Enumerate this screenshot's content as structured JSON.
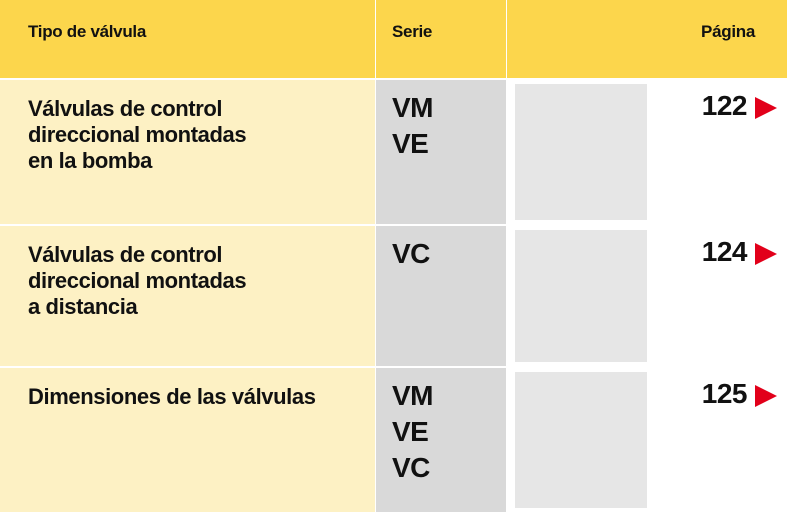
{
  "header": {
    "columns": [
      "Tipo de válvula",
      "Serie",
      "Página"
    ]
  },
  "rows": [
    {
      "type": [
        "Válvulas de control",
        "direccional montadas",
        "en la bomba"
      ],
      "series": [
        "VM",
        "VE"
      ],
      "page": "122"
    },
    {
      "type": [
        "Válvulas de control",
        "direccional montadas",
        "a distancia"
      ],
      "series": [
        "VC"
      ],
      "page": "124"
    },
    {
      "type": [
        "Dimensiones de las válvulas"
      ],
      "series": [
        "VM",
        "VE",
        "VC"
      ],
      "page": "125"
    }
  ]
}
